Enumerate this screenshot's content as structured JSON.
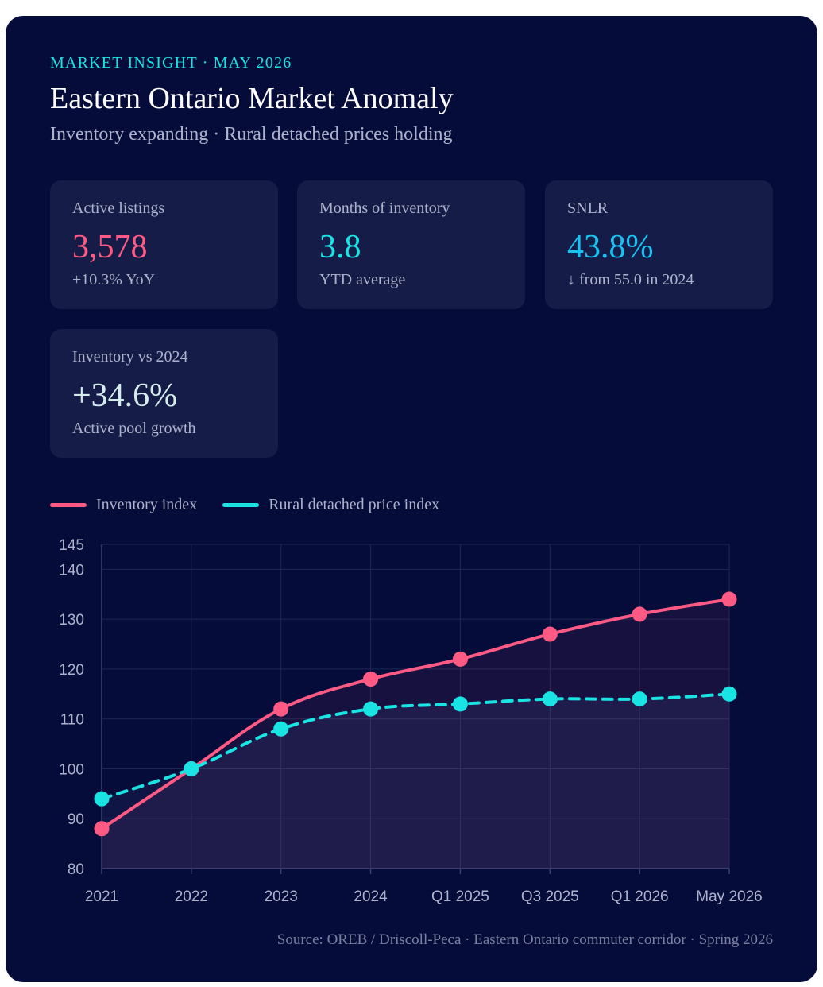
{
  "header": {
    "eyebrow": "MARKET INSIGHT · MAY 2026",
    "title": "Eastern Ontario Market Anomaly",
    "subtitle": "Inventory expanding · Rural detached prices holding"
  },
  "kpis": [
    {
      "label": "Active listings",
      "value": "3,578",
      "note": "+10.3% YoY",
      "color": "#ff5a84"
    },
    {
      "label": "Months of inventory",
      "value": "3.8",
      "note": "YTD average",
      "color": "#19e3e3"
    },
    {
      "label": "SNLR",
      "value": "43.8%",
      "note": "↓ from 55.0 in 2024",
      "color": "#18c3f2"
    },
    {
      "label": "Inventory vs 2024",
      "value": "+34.6%",
      "note": "Active pool growth",
      "color": "#d6ecec"
    }
  ],
  "chart_data": {
    "type": "line",
    "categories": [
      "2021",
      "2022",
      "2023",
      "2024",
      "Q1 2025",
      "Q3 2025",
      "Q1 2026",
      "May 2026"
    ],
    "series": [
      {
        "name": "Inventory index",
        "values": [
          88,
          100,
          112,
          118,
          122,
          127,
          131,
          134
        ],
        "color": "#ff5a84",
        "dashed": false
      },
      {
        "name": "Rural detached price index",
        "values": [
          94,
          100,
          108,
          112,
          113,
          114,
          114,
          115
        ],
        "color": "#19e3e3",
        "dashed": true
      }
    ],
    "ylim": [
      80,
      145
    ],
    "yticks": [
      80,
      90,
      100,
      110,
      120,
      130,
      140,
      145
    ],
    "grid": true,
    "legend": "top-left"
  },
  "source": "Source: OREB / Driscoll-Peca · Eastern Ontario commuter corridor · Spring 2026"
}
